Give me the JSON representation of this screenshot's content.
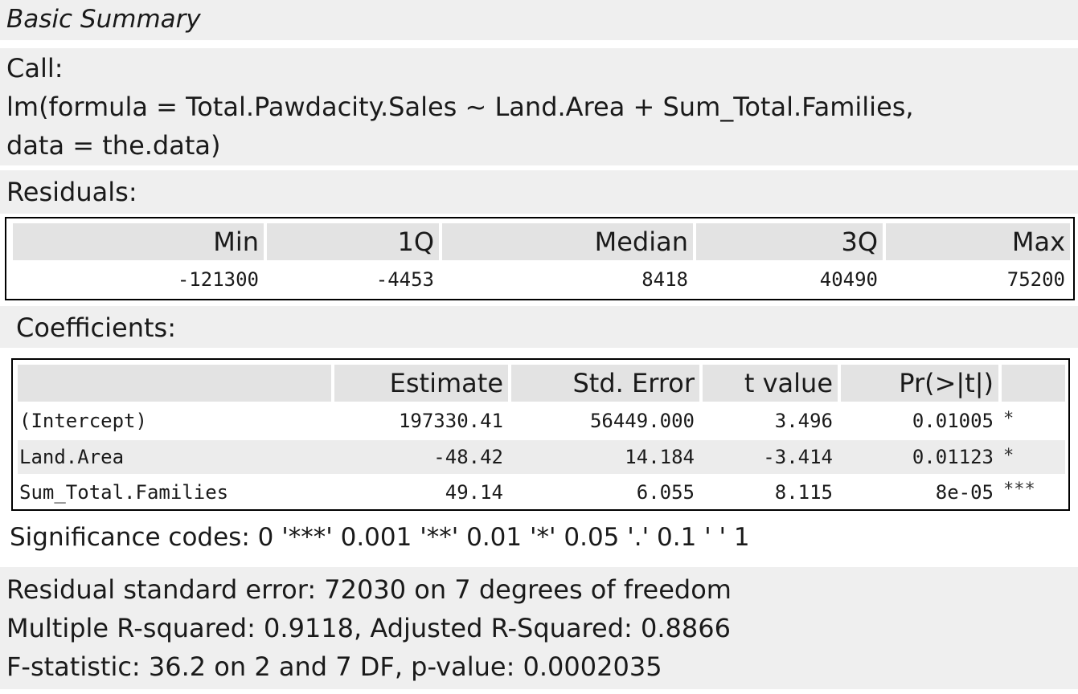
{
  "title": "Basic Summary",
  "call": {
    "heading": "Call:",
    "line1": "lm(formula = Total.Pawdacity.Sales ~ Land.Area + Sum_Total.Families,",
    "line2": "data = the.data)"
  },
  "residuals": {
    "heading": "Residuals:",
    "columns": [
      "Min",
      "1Q",
      "Median",
      "3Q",
      "Max"
    ],
    "values": [
      "-121300",
      "-4453",
      "8418",
      "40490",
      "75200"
    ]
  },
  "coefficients": {
    "heading": "Coefficients:",
    "columns": [
      "",
      "Estimate",
      "Std. Error",
      "t value",
      "Pr(>|t|)",
      ""
    ],
    "rows": [
      {
        "term": "(Intercept)",
        "estimate": "197330.41",
        "std_error": "56449.000",
        "t_value": "3.496",
        "p_value": "0.01005",
        "sig": "*"
      },
      {
        "term": "Land.Area",
        "estimate": "-48.42",
        "std_error": "14.184",
        "t_value": "-3.414",
        "p_value": "0.01123",
        "sig": "*"
      },
      {
        "term": "Sum_Total.Families",
        "estimate": "49.14",
        "std_error": "6.055",
        "t_value": "8.115",
        "p_value": "8e-05",
        "sig": "***"
      }
    ]
  },
  "significance_codes": "Significance codes: 0 '***' 0.001 '**' 0.01 '*' 0.05 '.' 0.1 ' ' 1",
  "fit_stats": {
    "line1": "Residual standard error: 72030 on 7 degrees of freedom",
    "line2": "Multiple R-squared: 0.9118, Adjusted R-Squared: 0.8866",
    "line3": "F-statistic: 36.2 on 2 and 7 DF, p-value: 0.0002035"
  }
}
